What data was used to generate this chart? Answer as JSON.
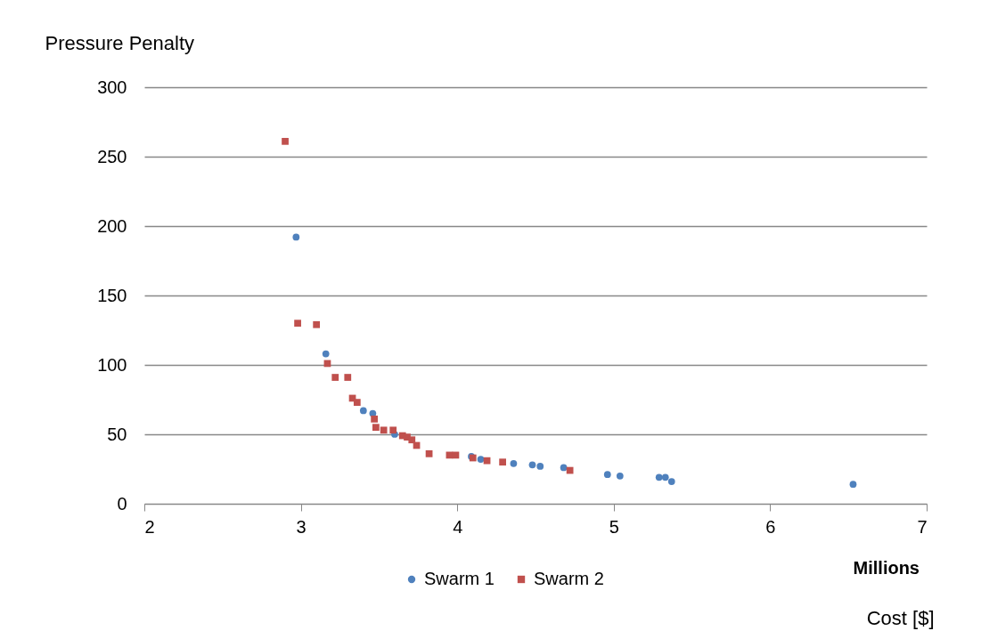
{
  "chart_data": {
    "type": "scatter",
    "xlabel": "Cost [$]",
    "ylabel": "Pressure Penalty",
    "annotations": [
      "Millions"
    ],
    "xlim": [
      2,
      7
    ],
    "xticks": [
      2,
      3,
      4,
      5,
      6,
      7
    ],
    "ylim": [
      0,
      300
    ],
    "yticks": [
      0,
      50,
      100,
      150,
      200,
      250,
      300
    ],
    "grid": "y",
    "legend": "bottom",
    "series": [
      {
        "name": "Swarm 1",
        "color": "#4f81bd",
        "marker": "circle",
        "x": [
          2.97,
          3.16,
          3.4,
          3.46,
          3.6,
          4.09,
          4.15,
          4.36,
          4.48,
          4.53,
          4.68,
          4.96,
          5.04,
          5.29,
          5.33,
          5.37,
          6.53
        ],
        "values": [
          192,
          108,
          67,
          65,
          50,
          34,
          32,
          29,
          28,
          27,
          26,
          21,
          20,
          19,
          19,
          16,
          14
        ]
      },
      {
        "name": "Swarm 2",
        "color": "#c0504d",
        "marker": "square",
        "x": [
          2.9,
          2.98,
          3.1,
          3.17,
          3.22,
          3.3,
          3.33,
          3.36,
          3.47,
          3.48,
          3.53,
          3.59,
          3.65,
          3.68,
          3.71,
          3.74,
          3.82,
          3.95,
          3.99,
          4.1,
          4.19,
          4.29,
          4.72
        ],
        "values": [
          261,
          130,
          129,
          101,
          91,
          91,
          76,
          73,
          61,
          55,
          53,
          53,
          49,
          48,
          46,
          42,
          36,
          35,
          35,
          33,
          31,
          30,
          24
        ]
      }
    ]
  }
}
